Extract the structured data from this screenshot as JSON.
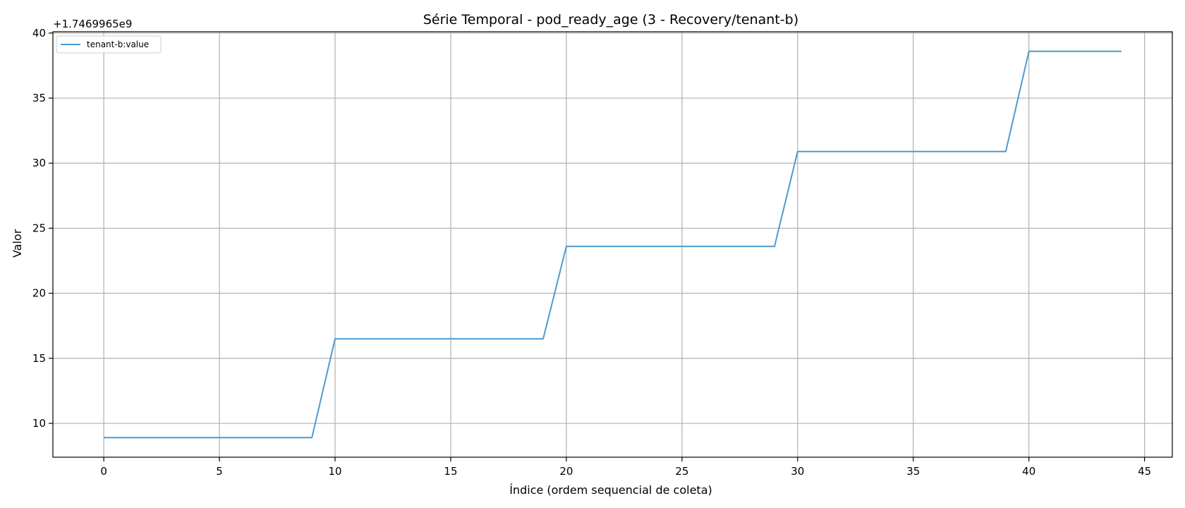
{
  "chart_data": {
    "type": "line",
    "title": "Série Temporal - pod_ready_age (3 - Recovery/tenant-b)",
    "xlabel": "Índice (ordem sequencial de coleta)",
    "ylabel": "Valor",
    "offset_label": "+1.7469965e9",
    "xlim": [
      -2.2,
      46.2
    ],
    "ylim": [
      7.4,
      40.1
    ],
    "xticks": [
      0,
      5,
      10,
      15,
      20,
      25,
      30,
      35,
      40,
      45
    ],
    "yticks": [
      10,
      15,
      20,
      25,
      30,
      35,
      40
    ],
    "grid": true,
    "legend_position": "top-left",
    "series": [
      {
        "name": "tenant-b:value",
        "color": "#4b9bd0",
        "x": [
          0,
          1,
          2,
          3,
          4,
          5,
          6,
          7,
          8,
          9,
          10,
          11,
          12,
          13,
          14,
          15,
          16,
          17,
          18,
          19,
          20,
          21,
          22,
          23,
          24,
          25,
          26,
          27,
          28,
          29,
          30,
          31,
          32,
          33,
          34,
          35,
          36,
          37,
          38,
          39,
          40,
          41,
          42,
          43,
          44
        ],
        "values": [
          8.9,
          8.9,
          8.9,
          8.9,
          8.9,
          8.9,
          8.9,
          8.9,
          8.9,
          8.9,
          16.5,
          16.5,
          16.5,
          16.5,
          16.5,
          16.5,
          16.5,
          16.5,
          16.5,
          16.5,
          23.6,
          23.6,
          23.6,
          23.6,
          23.6,
          23.6,
          23.6,
          23.6,
          23.6,
          23.6,
          30.9,
          30.9,
          30.9,
          30.9,
          30.9,
          30.9,
          30.9,
          30.9,
          30.9,
          30.9,
          38.6,
          38.6,
          38.6,
          38.6,
          38.6
        ]
      }
    ]
  }
}
